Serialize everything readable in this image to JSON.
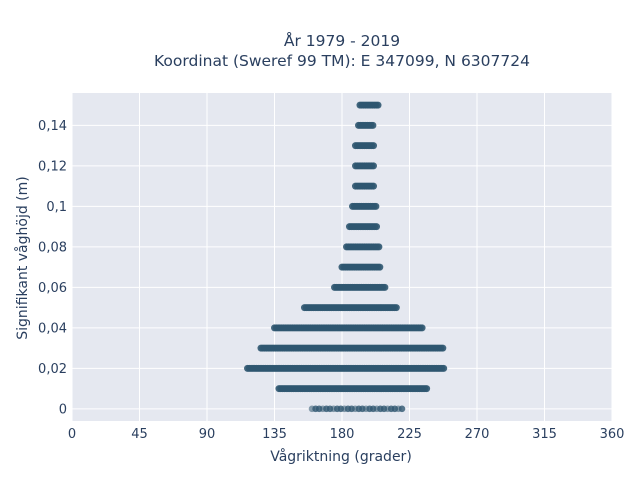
{
  "chart_data": {
    "type": "scatter",
    "title_line1": "År 1979 - 2019",
    "title_line2": "Koordinat (Sweref 99 TM): E 347099, N 6307724",
    "xlabel": "Vågriktning (grader)",
    "ylabel": "Signifikant våghöjd (m)",
    "xlim": [
      0,
      360
    ],
    "ylim": [
      -0.006,
      0.156
    ],
    "x_ticks": [
      0,
      45,
      90,
      135,
      180,
      225,
      270,
      315,
      360
    ],
    "x_tick_labels": [
      "0",
      "45",
      "90",
      "135",
      "180",
      "225",
      "270",
      "315",
      "360"
    ],
    "y_ticks": [
      0,
      0.02,
      0.04,
      0.06,
      0.08,
      0.1,
      0.12,
      0.14
    ],
    "y_tick_labels": [
      "0",
      "0,02",
      "0,04",
      "0,06",
      "0,08",
      "0,1",
      "0,12",
      "0,14"
    ],
    "grid": true,
    "legend": false,
    "marker_color": "#2f5670",
    "plot_background": "#e5e8f0",
    "grid_color": "#ffffff",
    "text_color": "#2a3f5f",
    "bands": [
      {
        "y": 0.0,
        "x_min": 160,
        "x_max": 222,
        "sparse": true
      },
      {
        "y": 0.01,
        "x_min": 138,
        "x_max": 237
      },
      {
        "y": 0.02,
        "x_min": 117,
        "x_max": 248
      },
      {
        "y": 0.03,
        "x_min": 126,
        "x_max": 248
      },
      {
        "y": 0.04,
        "x_min": 135,
        "x_max": 234
      },
      {
        "y": 0.05,
        "x_min": 155,
        "x_max": 217
      },
      {
        "y": 0.06,
        "x_min": 175,
        "x_max": 209
      },
      {
        "y": 0.07,
        "x_min": 180,
        "x_max": 206
      },
      {
        "y": 0.08,
        "x_min": 183,
        "x_max": 205
      },
      {
        "y": 0.09,
        "x_min": 185,
        "x_max": 203
      },
      {
        "y": 0.1,
        "x_min": 187,
        "x_max": 203
      },
      {
        "y": 0.11,
        "x_min": 189,
        "x_max": 202
      },
      {
        "y": 0.12,
        "x_min": 189,
        "x_max": 201
      },
      {
        "y": 0.13,
        "x_min": 189,
        "x_max": 201
      },
      {
        "y": 0.14,
        "x_min": 191,
        "x_max": 201
      },
      {
        "y": 0.15,
        "x_min": 192,
        "x_max": 205
      }
    ]
  }
}
